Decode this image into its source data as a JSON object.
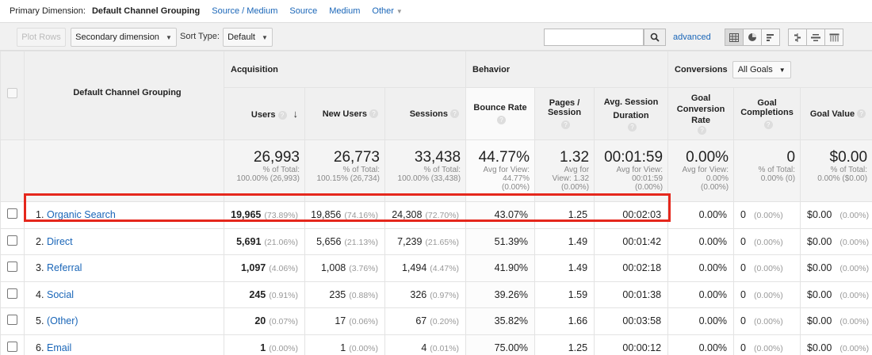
{
  "dimension_bar": {
    "label": "Primary Dimension:",
    "active": "Default Channel Grouping",
    "links": [
      "Source / Medium",
      "Source",
      "Medium",
      "Other"
    ]
  },
  "toolbar": {
    "plot_rows": "Plot Rows",
    "secondary_dimension": "Secondary dimension",
    "sort_type_label": "Sort Type:",
    "sort_type_value": "Default",
    "search_value": "",
    "advanced": "advanced"
  },
  "table": {
    "dimension_header": "Default Channel Grouping",
    "groups": {
      "acquisition": "Acquisition",
      "behavior": "Behavior",
      "conversions": "Conversions",
      "goals": "All Goals"
    },
    "columns": [
      "Users",
      "New Users",
      "Sessions",
      "Bounce Rate",
      "Pages / Session",
      "Avg. Session Duration",
      "Goal Conversion Rate",
      "Goal Completions",
      "Goal Value"
    ],
    "totals": [
      {
        "big": "26,993",
        "small": [
          "% of Total:",
          "100.00% (26,993)"
        ]
      },
      {
        "big": "26,773",
        "small": [
          "% of Total:",
          "100.15% (26,734)"
        ]
      },
      {
        "big": "33,438",
        "small": [
          "% of Total:",
          "100.00% (33,438)"
        ]
      },
      {
        "big": "44.77%",
        "small": [
          "Avg for View:",
          "44.77%",
          "(0.00%)"
        ]
      },
      {
        "big": "1.32",
        "small": [
          "Avg for",
          "View: 1.32",
          "(0.00%)"
        ]
      },
      {
        "big": "00:01:59",
        "small": [
          "Avg for View:",
          "00:01:59",
          "(0.00%)"
        ]
      },
      {
        "big": "0.00%",
        "small": [
          "Avg for View:",
          "0.00%",
          "(0.00%)"
        ]
      },
      {
        "big": "0",
        "small": [
          "% of Total:",
          "0.00% (0)"
        ]
      },
      {
        "big": "$0.00",
        "small": [
          "% of Total:",
          "0.00% ($0.00)"
        ]
      }
    ],
    "rows": [
      {
        "idx": "1.",
        "channel": "Organic Search",
        "users": "19,965",
        "users_pct": "(73.89%)",
        "new_users": "19,856",
        "new_users_pct": "(74.16%)",
        "sessions": "24,308",
        "sessions_pct": "(72.70%)",
        "bounce": "43.07%",
        "pages": "1.25",
        "duration": "00:02:03",
        "conv_rate": "0.00%",
        "completions": "0",
        "completions_pct": "(0.00%)",
        "value": "$0.00",
        "value_pct": "(0.00%)"
      },
      {
        "idx": "2.",
        "channel": "Direct",
        "users": "5,691",
        "users_pct": "(21.06%)",
        "new_users": "5,656",
        "new_users_pct": "(21.13%)",
        "sessions": "7,239",
        "sessions_pct": "(21.65%)",
        "bounce": "51.39%",
        "pages": "1.49",
        "duration": "00:01:42",
        "conv_rate": "0.00%",
        "completions": "0",
        "completions_pct": "(0.00%)",
        "value": "$0.00",
        "value_pct": "(0.00%)"
      },
      {
        "idx": "3.",
        "channel": "Referral",
        "users": "1,097",
        "users_pct": "(4.06%)",
        "new_users": "1,008",
        "new_users_pct": "(3.76%)",
        "sessions": "1,494",
        "sessions_pct": "(4.47%)",
        "bounce": "41.90%",
        "pages": "1.49",
        "duration": "00:02:18",
        "conv_rate": "0.00%",
        "completions": "0",
        "completions_pct": "(0.00%)",
        "value": "$0.00",
        "value_pct": "(0.00%)"
      },
      {
        "idx": "4.",
        "channel": "Social",
        "users": "245",
        "users_pct": "(0.91%)",
        "new_users": "235",
        "new_users_pct": "(0.88%)",
        "sessions": "326",
        "sessions_pct": "(0.97%)",
        "bounce": "39.26%",
        "pages": "1.59",
        "duration": "00:01:38",
        "conv_rate": "0.00%",
        "completions": "0",
        "completions_pct": "(0.00%)",
        "value": "$0.00",
        "value_pct": "(0.00%)"
      },
      {
        "idx": "5.",
        "channel": "(Other)",
        "users": "20",
        "users_pct": "(0.07%)",
        "new_users": "17",
        "new_users_pct": "(0.06%)",
        "sessions": "67",
        "sessions_pct": "(0.20%)",
        "bounce": "35.82%",
        "pages": "1.66",
        "duration": "00:03:58",
        "conv_rate": "0.00%",
        "completions": "0",
        "completions_pct": "(0.00%)",
        "value": "$0.00",
        "value_pct": "(0.00%)"
      },
      {
        "idx": "6.",
        "channel": "Email",
        "users": "1",
        "users_pct": "(0.00%)",
        "new_users": "1",
        "new_users_pct": "(0.00%)",
        "sessions": "4",
        "sessions_pct": "(0.01%)",
        "bounce": "75.00%",
        "pages": "1.25",
        "duration": "00:00:12",
        "conv_rate": "0.00%",
        "completions": "0",
        "completions_pct": "(0.00%)",
        "value": "$0.00",
        "value_pct": "(0.00%)"
      }
    ]
  },
  "highlight_color": "#e5271c"
}
